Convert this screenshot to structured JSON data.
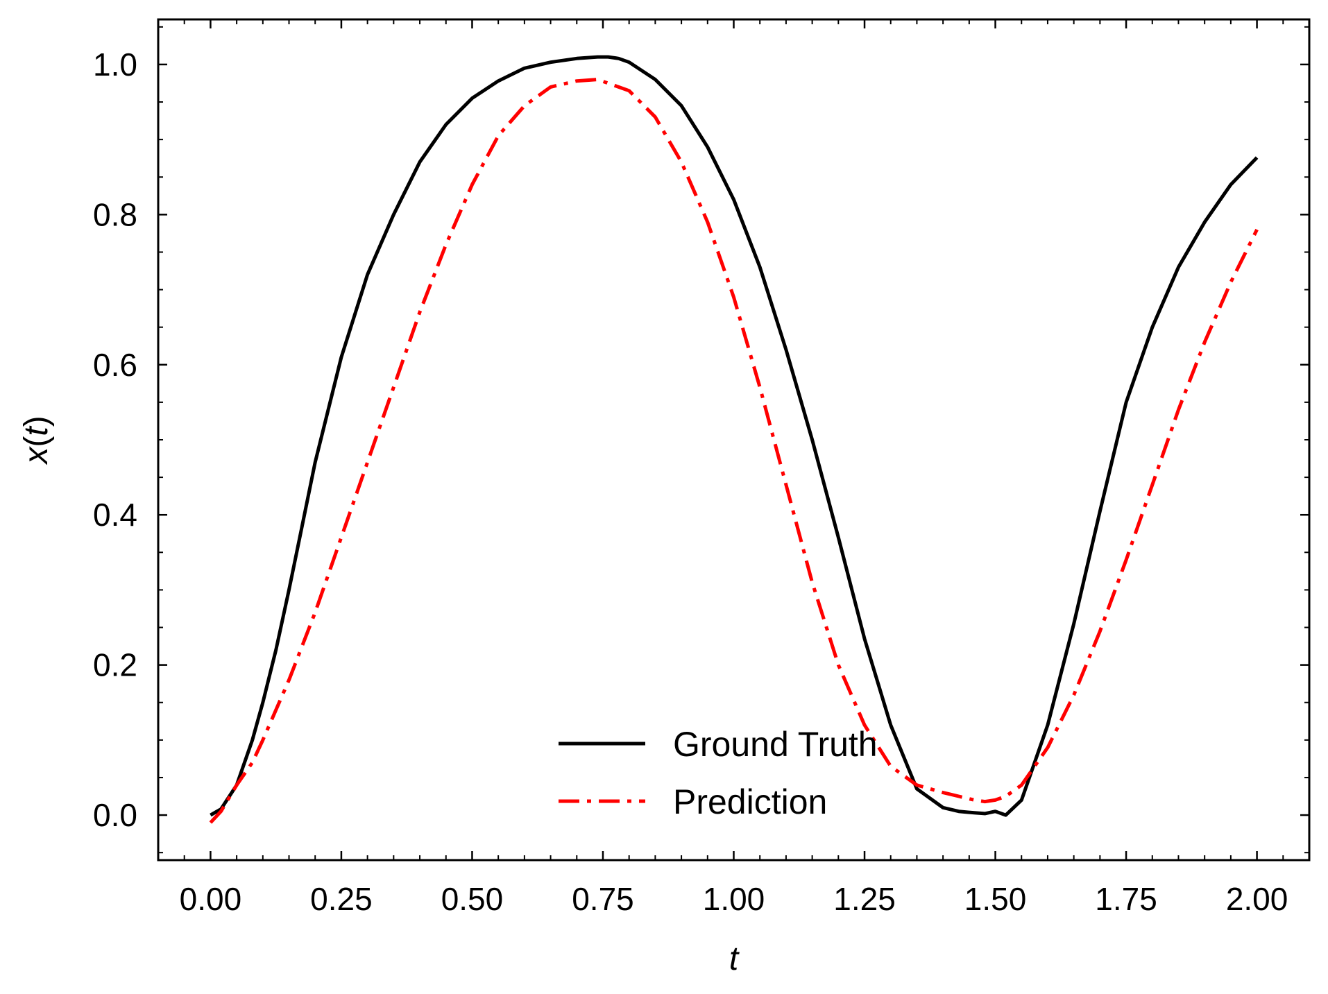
{
  "chart_data": {
    "type": "line",
    "xlabel": "t",
    "ylabel_base": "x",
    "ylabel_arg": "t",
    "xlim": [
      -0.1,
      2.1
    ],
    "ylim": [
      -0.06,
      1.06
    ],
    "xticks": [
      0.0,
      0.25,
      0.5,
      0.75,
      1.0,
      1.25,
      1.5,
      1.75,
      2.0
    ],
    "xtick_labels": [
      "0.00",
      "0.25",
      "0.50",
      "0.75",
      "1.00",
      "1.25",
      "1.50",
      "1.75",
      "2.00"
    ],
    "yticks": [
      0.0,
      0.2,
      0.4,
      0.6,
      0.8,
      1.0
    ],
    "ytick_labels": [
      "0.0",
      "0.2",
      "0.4",
      "0.6",
      "0.8",
      "1.0"
    ],
    "x_minor_step": 0.05,
    "y_minor_step": 0.05,
    "legend_position": "lower center",
    "grid": false,
    "series": [
      {
        "name": "Ground Truth",
        "color": "#000000",
        "style": "solid",
        "x": [
          0.0,
          0.02,
          0.05,
          0.08,
          0.1,
          0.125,
          0.15,
          0.175,
          0.2,
          0.25,
          0.3,
          0.35,
          0.4,
          0.45,
          0.5,
          0.55,
          0.6,
          0.65,
          0.7,
          0.74,
          0.76,
          0.78,
          0.8,
          0.85,
          0.9,
          0.95,
          1.0,
          1.05,
          1.1,
          1.15,
          1.2,
          1.25,
          1.3,
          1.35,
          1.4,
          1.43,
          1.46,
          1.48,
          1.5,
          1.52,
          1.55,
          1.6,
          1.65,
          1.7,
          1.75,
          1.8,
          1.85,
          1.9,
          1.95,
          2.0
        ],
        "y": [
          0.0,
          0.008,
          0.04,
          0.1,
          0.15,
          0.22,
          0.3,
          0.385,
          0.47,
          0.61,
          0.72,
          0.8,
          0.87,
          0.92,
          0.955,
          0.978,
          0.995,
          1.003,
          1.008,
          1.01,
          1.01,
          1.008,
          1.003,
          0.98,
          0.945,
          0.89,
          0.82,
          0.73,
          0.62,
          0.5,
          0.37,
          0.235,
          0.12,
          0.035,
          0.01,
          0.005,
          0.003,
          0.002,
          0.005,
          0.0,
          0.02,
          0.12,
          0.255,
          0.405,
          0.55,
          0.65,
          0.73,
          0.79,
          0.84,
          0.876
        ]
      },
      {
        "name": "Prediction",
        "color": "#ff0000",
        "style": "dashdot",
        "x": [
          0.0,
          0.02,
          0.05,
          0.08,
          0.1,
          0.15,
          0.2,
          0.25,
          0.3,
          0.35,
          0.4,
          0.45,
          0.5,
          0.55,
          0.6,
          0.65,
          0.7,
          0.74,
          0.78,
          0.8,
          0.85,
          0.9,
          0.95,
          1.0,
          1.05,
          1.1,
          1.15,
          1.2,
          1.25,
          1.3,
          1.35,
          1.4,
          1.43,
          1.46,
          1.48,
          1.5,
          1.52,
          1.55,
          1.6,
          1.65,
          1.7,
          1.75,
          1.8,
          1.85,
          1.9,
          1.95,
          2.0
        ],
        "y": [
          -0.01,
          0.005,
          0.04,
          0.07,
          0.1,
          0.18,
          0.27,
          0.37,
          0.47,
          0.57,
          0.67,
          0.76,
          0.84,
          0.905,
          0.945,
          0.97,
          0.978,
          0.98,
          0.97,
          0.965,
          0.93,
          0.87,
          0.79,
          0.69,
          0.57,
          0.44,
          0.31,
          0.2,
          0.12,
          0.065,
          0.04,
          0.03,
          0.025,
          0.02,
          0.018,
          0.02,
          0.025,
          0.04,
          0.09,
          0.16,
          0.245,
          0.34,
          0.44,
          0.54,
          0.63,
          0.71,
          0.78
        ]
      }
    ]
  }
}
